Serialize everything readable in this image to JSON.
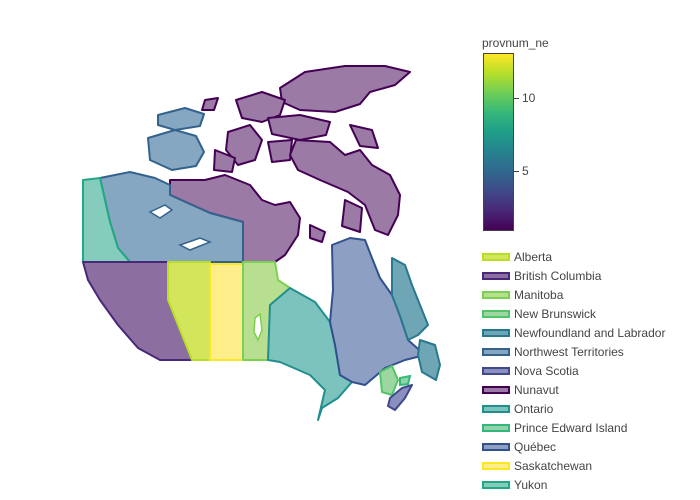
{
  "map": {
    "colorbar": {
      "title": "provnum_ne",
      "ticks": [
        {
          "label": "5",
          "value": 5
        },
        {
          "label": "10",
          "value": 10
        }
      ],
      "range": [
        1,
        13
      ]
    },
    "legend": [
      {
        "label": "Alberta",
        "value": 12,
        "fill": "#d3e55a",
        "stroke": "#b8de29"
      },
      {
        "label": "British Columbia",
        "value": 2,
        "fill": "#8c6fa0",
        "stroke": "#482878"
      },
      {
        "label": "Manitoba",
        "value": 11,
        "fill": "#b8df8f",
        "stroke": "#7ad151"
      },
      {
        "label": "New Brunswick",
        "value": 10,
        "fill": "#9cd6a0",
        "stroke": "#52c569"
      },
      {
        "label": "Newfoundland and Labrador",
        "value": 6,
        "fill": "#6ea6b5",
        "stroke": "#2a788e"
      },
      {
        "label": "Northwest Territories",
        "value": 5,
        "fill": "#86a7c2",
        "stroke": "#33638d"
      },
      {
        "label": "Nova Scotia",
        "value": 3,
        "fill": "#8a8fc0",
        "stroke": "#3e4a89"
      },
      {
        "label": "Nunavut",
        "value": 1,
        "fill": "#9c7aa6",
        "stroke": "#440154"
      },
      {
        "label": "Ontario",
        "value": 7,
        "fill": "#7cc3bd",
        "stroke": "#21908d"
      },
      {
        "label": "Prince Edward Island",
        "value": 9,
        "fill": "#8fd4ab",
        "stroke": "#35b779"
      },
      {
        "label": "Québec",
        "value": 4,
        "fill": "#8e9fc4",
        "stroke": "#31508e"
      },
      {
        "label": "Saskatchewan",
        "value": 13,
        "fill": "#fdee8a",
        "stroke": "#fde725"
      },
      {
        "label": "Yukon",
        "value": 8,
        "fill": "#84ccbb",
        "stroke": "#22a884"
      }
    ]
  }
}
